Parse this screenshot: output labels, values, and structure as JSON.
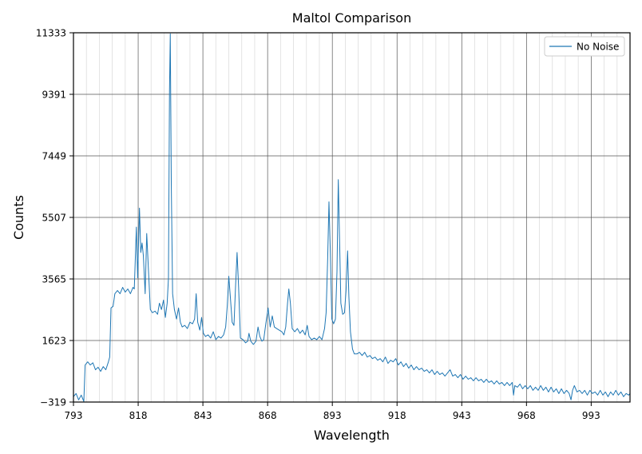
{
  "chart_data": {
    "type": "line",
    "title": "Maltol Comparison",
    "xlabel": "Wavelength",
    "ylabel": "Counts",
    "xlim": [
      793,
      1008
    ],
    "ylim": [
      -319,
      11333
    ],
    "x_ticks": [
      793,
      818,
      843,
      868,
      893,
      918,
      943,
      968,
      993
    ],
    "y_ticks": [
      -319,
      1623,
      3565,
      5507,
      7449,
      9391,
      11333
    ],
    "x_tick_labels": [
      "793",
      "818",
      "843",
      "868",
      "893",
      "918",
      "943",
      "968",
      "993"
    ],
    "y_tick_labels": [
      "−319",
      "1623",
      "3565",
      "5507",
      "7449",
      "9391",
      "11333"
    ],
    "x_minor_step": 5,
    "grid": true,
    "legend_position": "top-right",
    "series": [
      {
        "name": "No Noise",
        "color": "#1f77b4",
        "points": [
          [
            793,
            -150
          ],
          [
            794,
            -50
          ],
          [
            795,
            -250
          ],
          [
            796,
            -100
          ],
          [
            797,
            -300
          ],
          [
            797.5,
            850
          ],
          [
            798.5,
            950
          ],
          [
            799.5,
            850
          ],
          [
            800.5,
            920
          ],
          [
            801.5,
            700
          ],
          [
            802.5,
            780
          ],
          [
            803.5,
            650
          ],
          [
            804.5,
            800
          ],
          [
            805.5,
            700
          ],
          [
            806.5,
            950
          ],
          [
            807,
            1100
          ],
          [
            807.5,
            2650
          ],
          [
            808.3,
            2700
          ],
          [
            809,
            3100
          ],
          [
            810,
            3200
          ],
          [
            811,
            3100
          ],
          [
            812,
            3300
          ],
          [
            813,
            3150
          ],
          [
            814,
            3250
          ],
          [
            815,
            3100
          ],
          [
            816,
            3300
          ],
          [
            816.5,
            3250
          ],
          [
            817.3,
            5200
          ],
          [
            817.8,
            3600
          ],
          [
            818.5,
            5800
          ],
          [
            819,
            4400
          ],
          [
            819.5,
            4700
          ],
          [
            820,
            4300
          ],
          [
            820.7,
            3100
          ],
          [
            821.3,
            5000
          ],
          [
            822,
            3800
          ],
          [
            822.7,
            2600
          ],
          [
            823.5,
            2500
          ],
          [
            824.5,
            2550
          ],
          [
            825.5,
            2450
          ],
          [
            826.2,
            2800
          ],
          [
            827,
            2600
          ],
          [
            827.8,
            2900
          ],
          [
            828.5,
            2350
          ],
          [
            829.2,
            2800
          ],
          [
            829.7,
            3600
          ],
          [
            830.1,
            9500
          ],
          [
            830.4,
            11300
          ],
          [
            830.8,
            6500
          ],
          [
            831.3,
            3100
          ],
          [
            832,
            2600
          ],
          [
            832.8,
            2300
          ],
          [
            833.6,
            2650
          ],
          [
            834.3,
            2200
          ],
          [
            835,
            2050
          ],
          [
            836,
            2100
          ],
          [
            837,
            2000
          ],
          [
            838,
            2200
          ],
          [
            839,
            2150
          ],
          [
            839.8,
            2300
          ],
          [
            840.4,
            3100
          ],
          [
            841,
            2200
          ],
          [
            841.8,
            1950
          ],
          [
            842.5,
            2350
          ],
          [
            843.2,
            1850
          ],
          [
            844,
            1750
          ],
          [
            845,
            1800
          ],
          [
            846,
            1700
          ],
          [
            847,
            1900
          ],
          [
            848,
            1650
          ],
          [
            849,
            1750
          ],
          [
            850,
            1700
          ],
          [
            851,
            1800
          ],
          [
            851.8,
            2050
          ],
          [
            852.4,
            2700
          ],
          [
            853,
            3650
          ],
          [
            853.6,
            3000
          ],
          [
            854.3,
            2200
          ],
          [
            855,
            2100
          ],
          [
            855.6,
            3300
          ],
          [
            856.2,
            4400
          ],
          [
            856.8,
            3300
          ],
          [
            857.5,
            1700
          ],
          [
            858.5,
            1650
          ],
          [
            859.5,
            1550
          ],
          [
            860.3,
            1600
          ],
          [
            860.8,
            1850
          ],
          [
            861.5,
            1600
          ],
          [
            862.5,
            1500
          ],
          [
            863.5,
            1600
          ],
          [
            864.3,
            2050
          ],
          [
            865,
            1750
          ],
          [
            865.8,
            1600
          ],
          [
            866.5,
            1650
          ],
          [
            867.3,
            2150
          ],
          [
            868.2,
            2650
          ],
          [
            869,
            2050
          ],
          [
            869.8,
            2400
          ],
          [
            870.6,
            2050
          ],
          [
            871.5,
            2000
          ],
          [
            872.5,
            1950
          ],
          [
            873.5,
            1900
          ],
          [
            874.3,
            1800
          ],
          [
            875,
            2050
          ],
          [
            875.7,
            2800
          ],
          [
            876.2,
            3250
          ],
          [
            876.8,
            2800
          ],
          [
            877.5,
            2000
          ],
          [
            878.5,
            1900
          ],
          [
            879.5,
            2000
          ],
          [
            880.5,
            1850
          ],
          [
            881.5,
            1950
          ],
          [
            882.5,
            1800
          ],
          [
            883.3,
            2100
          ],
          [
            884,
            1750
          ],
          [
            885,
            1650
          ],
          [
            886,
            1700
          ],
          [
            887,
            1650
          ],
          [
            888,
            1750
          ],
          [
            889,
            1650
          ],
          [
            890,
            2000
          ],
          [
            890.6,
            2500
          ],
          [
            891.2,
            4200
          ],
          [
            891.7,
            6000
          ],
          [
            892.2,
            4500
          ],
          [
            892.8,
            2300
          ],
          [
            893.5,
            2150
          ],
          [
            894.2,
            2300
          ],
          [
            894.8,
            3800
          ],
          [
            895.3,
            6700
          ],
          [
            895.8,
            4800
          ],
          [
            896.3,
            2800
          ],
          [
            897,
            2450
          ],
          [
            897.7,
            2500
          ],
          [
            898.3,
            3200
          ],
          [
            898.9,
            4450
          ],
          [
            899.4,
            3000
          ],
          [
            900,
            1900
          ],
          [
            900.8,
            1350
          ],
          [
            901.5,
            1200
          ],
          [
            902.5,
            1200
          ],
          [
            903.5,
            1250
          ],
          [
            904.5,
            1150
          ],
          [
            905.5,
            1250
          ],
          [
            906.5,
            1100
          ],
          [
            907.5,
            1150
          ],
          [
            908.5,
            1050
          ],
          [
            909.5,
            1100
          ],
          [
            910.5,
            1000
          ],
          [
            911.5,
            1050
          ],
          [
            912.5,
            950
          ],
          [
            913.5,
            1100
          ],
          [
            914.5,
            900
          ],
          [
            915.5,
            1000
          ],
          [
            916.5,
            950
          ],
          [
            917.5,
            1050
          ],
          [
            918.5,
            850
          ],
          [
            919.5,
            950
          ],
          [
            920.5,
            800
          ],
          [
            921.5,
            900
          ],
          [
            922.5,
            750
          ],
          [
            923.5,
            850
          ],
          [
            924.5,
            700
          ],
          [
            925.5,
            800
          ],
          [
            926.5,
            700
          ],
          [
            927.5,
            750
          ],
          [
            928.5,
            650
          ],
          [
            929.5,
            700
          ],
          [
            930.5,
            600
          ],
          [
            931.5,
            700
          ],
          [
            932.5,
            550
          ],
          [
            933.5,
            650
          ],
          [
            934.5,
            550
          ],
          [
            935.5,
            600
          ],
          [
            936.5,
            500
          ],
          [
            937.5,
            600
          ],
          [
            938.5,
            700
          ],
          [
            939.5,
            500
          ],
          [
            940.5,
            550
          ],
          [
            941.5,
            450
          ],
          [
            942.5,
            550
          ],
          [
            943.5,
            400
          ],
          [
            944.5,
            500
          ],
          [
            945.5,
            400
          ],
          [
            946.5,
            450
          ],
          [
            947.5,
            350
          ],
          [
            948.5,
            450
          ],
          [
            949.5,
            350
          ],
          [
            950.5,
            400
          ],
          [
            951.5,
            300
          ],
          [
            952.5,
            400
          ],
          [
            953.5,
            300
          ],
          [
            954.5,
            350
          ],
          [
            955.5,
            250
          ],
          [
            956.5,
            350
          ],
          [
            957.5,
            250
          ],
          [
            958.5,
            300
          ],
          [
            959.5,
            200
          ],
          [
            960.5,
            300
          ],
          [
            961.5,
            200
          ],
          [
            962.5,
            300
          ],
          [
            963,
            -100
          ],
          [
            963.5,
            200
          ],
          [
            964.5,
            150
          ],
          [
            965.5,
            250
          ],
          [
            966.5,
            100
          ],
          [
            967.5,
            200
          ],
          [
            968.5,
            100
          ],
          [
            969.5,
            200
          ],
          [
            970.5,
            50
          ],
          [
            971.5,
            150
          ],
          [
            972.5,
            50
          ],
          [
            973.5,
            200
          ],
          [
            974.5,
            50
          ],
          [
            975.5,
            150
          ],
          [
            976.5,
            0
          ],
          [
            977.5,
            150
          ],
          [
            978.5,
            0
          ],
          [
            979.5,
            100
          ],
          [
            980.5,
            -50
          ],
          [
            981.5,
            100
          ],
          [
            982.5,
            -50
          ],
          [
            983.5,
            50
          ],
          [
            984.5,
            -50
          ],
          [
            985.2,
            -250
          ],
          [
            985.8,
            50
          ],
          [
            986.5,
            200
          ],
          [
            987.5,
            0
          ],
          [
            988.5,
            50
          ],
          [
            989.5,
            -50
          ],
          [
            990.5,
            50
          ],
          [
            991.5,
            -100
          ],
          [
            992.5,
            50
          ],
          [
            993.5,
            -50
          ],
          [
            994.5,
            0
          ],
          [
            995.5,
            -100
          ],
          [
            996.5,
            50
          ],
          [
            997.5,
            -100
          ],
          [
            998.5,
            0
          ],
          [
            999.5,
            -150
          ],
          [
            1000.5,
            0
          ],
          [
            1001.5,
            -100
          ],
          [
            1002.5,
            50
          ],
          [
            1003.5,
            -100
          ],
          [
            1004.5,
            0
          ],
          [
            1005.5,
            -150
          ],
          [
            1006.5,
            -50
          ],
          [
            1007.5,
            -100
          ],
          [
            1008,
            -50
          ]
        ]
      }
    ]
  }
}
